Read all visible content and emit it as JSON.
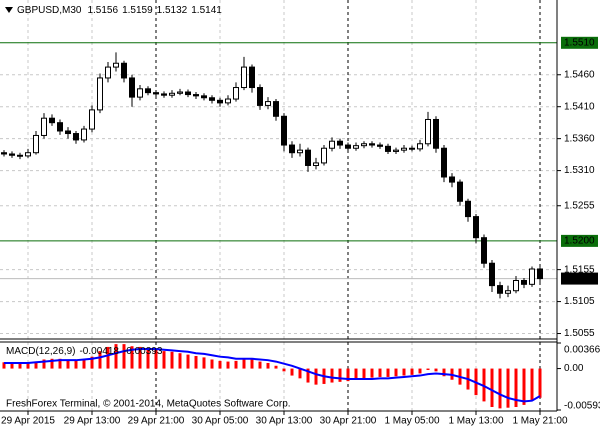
{
  "chart_data": [
    {
      "type": "candlestick",
      "title": "GBPUSD,M30",
      "categories": [
        null,
        null,
        null,
        "29 Apr 2015",
        null,
        null,
        null,
        null,
        null,
        null,
        null,
        "29 Apr 13:00",
        null,
        null,
        null,
        null,
        null,
        null,
        null,
        "29 Apr 21:00",
        null,
        null,
        null,
        null,
        null,
        null,
        null,
        "30 Apr 05:00",
        null,
        null,
        null,
        null,
        null,
        null,
        null,
        "30 Apr 13:00",
        null,
        null,
        null,
        null,
        null,
        null,
        null,
        "30 Apr 21:00",
        null,
        null,
        null,
        null,
        null,
        null,
        null,
        "1 May 05:00",
        null,
        null,
        null,
        null,
        null,
        null,
        null,
        "1 May 13:00",
        null,
        null,
        null,
        null,
        null,
        null,
        null,
        "1 May 21:00"
      ],
      "open": [
        1.5338,
        1.5336,
        1.5334,
        1.5333,
        1.5338,
        1.5365,
        1.5392,
        1.5385,
        1.5372,
        1.5368,
        1.5358,
        1.5375,
        1.5405,
        1.5455,
        1.5472,
        1.5478,
        1.5455,
        1.5425,
        1.5438,
        1.5432,
        1.543,
        1.5428,
        1.5431,
        1.5433,
        1.5429,
        1.5427,
        1.5424,
        1.542,
        1.5416,
        1.5422,
        1.544,
        1.5472,
        1.544,
        1.5412,
        1.5418,
        1.5395,
        1.535,
        1.5338,
        1.5342,
        1.5318,
        1.5322,
        1.5345,
        1.5356,
        1.535,
        1.5345,
        1.5349,
        1.5352,
        1.535,
        1.5348,
        1.534,
        1.5342,
        1.5345,
        1.5344,
        1.5352,
        1.539,
        1.5345,
        1.53,
        1.5292,
        1.5262,
        1.5238,
        1.5205,
        1.5165,
        1.513,
        1.5118,
        1.5122,
        1.5138,
        1.5132,
        1.5156
      ],
      "high": [
        1.5342,
        1.534,
        1.5338,
        1.5344,
        1.5372,
        1.54,
        1.5398,
        1.539,
        1.5378,
        1.5372,
        1.538,
        1.5412,
        1.5462,
        1.548,
        1.5495,
        1.5482,
        1.546,
        1.5444,
        1.5442,
        1.5436,
        1.5434,
        1.5436,
        1.5438,
        1.5437,
        1.5433,
        1.5431,
        1.5428,
        1.5424,
        1.5428,
        1.5448,
        1.5488,
        1.5476,
        1.5445,
        1.5425,
        1.5422,
        1.54,
        1.5356,
        1.5352,
        1.5346,
        1.533,
        1.535,
        1.5362,
        1.536,
        1.5354,
        1.5354,
        1.5356,
        1.5356,
        1.5354,
        1.5352,
        1.5346,
        1.535,
        1.5349,
        1.5358,
        1.5402,
        1.5395,
        1.535,
        1.5306,
        1.5296,
        1.5266,
        1.5242,
        1.521,
        1.517,
        1.5136,
        1.513,
        1.5145,
        1.5142,
        1.516,
        1.5159
      ],
      "low": [
        1.5332,
        1.533,
        1.5328,
        1.533,
        1.5335,
        1.536,
        1.538,
        1.5366,
        1.536,
        1.5352,
        1.5354,
        1.537,
        1.54,
        1.5448,
        1.5465,
        1.5448,
        1.541,
        1.542,
        1.5428,
        1.5426,
        1.5424,
        1.5424,
        1.5428,
        1.5425,
        1.5422,
        1.542,
        1.5415,
        1.541,
        1.5412,
        1.5418,
        1.5436,
        1.5432,
        1.5405,
        1.5406,
        1.5388,
        1.534,
        1.533,
        1.5332,
        1.5308,
        1.5312,
        1.5318,
        1.534,
        1.5344,
        1.534,
        1.5341,
        1.5345,
        1.5346,
        1.5344,
        1.5336,
        1.5336,
        1.5338,
        1.534,
        1.534,
        1.5348,
        1.5338,
        1.5292,
        1.5284,
        1.5255,
        1.523,
        1.5196,
        1.5158,
        1.512,
        1.511,
        1.5112,
        1.5118,
        1.5126,
        1.5128,
        1.5132
      ],
      "close": [
        1.5336,
        1.5334,
        1.5333,
        1.5338,
        1.5365,
        1.5392,
        1.5385,
        1.5372,
        1.5368,
        1.5358,
        1.5375,
        1.5405,
        1.5455,
        1.5472,
        1.5478,
        1.5455,
        1.5425,
        1.5438,
        1.5432,
        1.543,
        1.5428,
        1.5431,
        1.5433,
        1.5429,
        1.5427,
        1.5424,
        1.542,
        1.5416,
        1.5422,
        1.544,
        1.5472,
        1.544,
        1.5412,
        1.5418,
        1.5395,
        1.535,
        1.5338,
        1.5342,
        1.5318,
        1.5322,
        1.5345,
        1.5356,
        1.535,
        1.5345,
        1.5349,
        1.5352,
        1.535,
        1.5348,
        1.534,
        1.5342,
        1.5345,
        1.5344,
        1.5352,
        1.539,
        1.5345,
        1.53,
        1.5292,
        1.5262,
        1.5238,
        1.5205,
        1.5165,
        1.513,
        1.5118,
        1.5122,
        1.5138,
        1.5132,
        1.5156,
        1.5141
      ],
      "ylim": [
        1.5048,
        1.5577
      ],
      "yticks": [
        {
          "value": 1.546,
          "label": "1.5460"
        },
        {
          "value": 1.541,
          "label": "1.5410"
        },
        {
          "value": 1.536,
          "label": "1.5360"
        },
        {
          "value": 1.531,
          "label": "1.5310"
        },
        1.5255,
        1.5155,
        1.5105,
        1.5055
      ],
      "hlines": [
        {
          "value": 1.551,
          "label": "1.5510",
          "color": "#0a6e0a"
        },
        {
          "value": 1.52,
          "label": "1.5200",
          "color": "#0a6e0a"
        }
      ],
      "grid": true,
      "up_color": "#ffffff",
      "down_color": "#000000",
      "bid_color": "#bdbdbd"
    },
    {
      "type": "macd",
      "title": "MACD(12,26,9)",
      "histogram": {
        "color": "#ff0000",
        "values": [
          0.0009,
          0.0008,
          0.0008,
          0.0008,
          0.001,
          0.0013,
          0.0014,
          0.0014,
          0.0013,
          0.0012,
          0.0013,
          0.0017,
          0.0025,
          0.0031,
          0.0035,
          0.0035,
          0.0032,
          0.0031,
          0.0029,
          0.0027,
          0.0025,
          0.0024,
          0.0022,
          0.002,
          0.0018,
          0.0016,
          0.0013,
          0.0011,
          0.001,
          0.0011,
          0.0015,
          0.0014,
          0.001,
          0.0008,
          0.0004,
          -0.0004,
          -0.001,
          -0.0014,
          -0.002,
          -0.0023,
          -0.0022,
          -0.002,
          -0.0019,
          -0.0018,
          -0.0016,
          -0.0014,
          -0.0013,
          -0.0012,
          -0.0012,
          -0.0011,
          -0.001,
          -0.0009,
          -0.0007,
          -0.0002,
          -0.0004,
          -0.0011,
          -0.0016,
          -0.0023,
          -0.003,
          -0.0038,
          -0.0047,
          -0.0055,
          -0.0057,
          -0.0056,
          -0.0055,
          -0.0052,
          -0.0045,
          -0.00418
        ]
      },
      "signal": {
        "color": "#0000ff",
        "values": [
          0.0008,
          0.0008,
          0.0008,
          0.0008,
          0.0009,
          0.001,
          0.0011,
          0.0012,
          0.0012,
          0.0012,
          0.0013,
          0.0014,
          0.0016,
          0.0019,
          0.0022,
          0.0025,
          0.0027,
          0.0028,
          0.0028,
          0.0028,
          0.0027,
          0.0026,
          0.0025,
          0.0024,
          0.0022,
          0.0021,
          0.0019,
          0.0017,
          0.0016,
          0.0014,
          0.0014,
          0.0014,
          0.0013,
          0.0012,
          0.001,
          0.0007,
          0.0004,
          0.0,
          -0.0004,
          -0.0008,
          -0.0011,
          -0.0013,
          -0.0014,
          -0.0015,
          -0.0015,
          -0.0015,
          -0.0015,
          -0.0014,
          -0.0014,
          -0.0013,
          -0.0012,
          -0.0011,
          -0.001,
          -0.0008,
          -0.0007,
          -0.0008,
          -0.0009,
          -0.0012,
          -0.0015,
          -0.002,
          -0.0025,
          -0.0031,
          -0.0037,
          -0.0042,
          -0.0045,
          -0.0047,
          -0.0046,
          -0.00393
        ]
      },
      "ylim": [
        -0.00593,
        0.00366
      ],
      "yticks": [
        0.00366,
        {
          "value": 0,
          "label": "0.00"
        },
        -0.00593
      ]
    }
  ],
  "footer": "FreshForex Terminal, © 2001-2014, MetaQuotes Software Corp."
}
